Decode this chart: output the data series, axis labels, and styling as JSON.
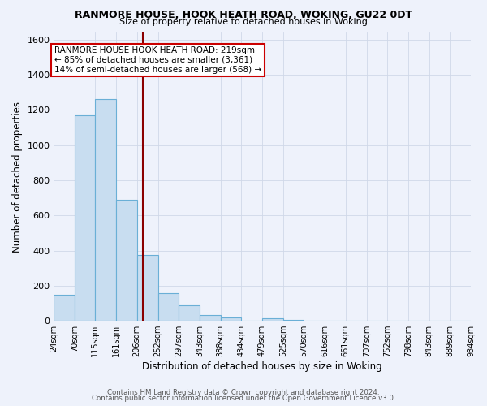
{
  "title1": "RANMORE HOUSE, HOOK HEATH ROAD, WOKING, GU22 0DT",
  "title2": "Size of property relative to detached houses in Woking",
  "xlabel": "Distribution of detached houses by size in Woking",
  "ylabel": "Number of detached properties",
  "bin_edges": [
    24,
    70,
    115,
    161,
    206,
    252,
    297,
    343,
    388,
    434,
    479,
    525,
    570,
    616,
    661,
    707,
    752,
    798,
    843,
    889,
    934
  ],
  "bar_heights": [
    150,
    1170,
    1260,
    690,
    375,
    160,
    90,
    35,
    20,
    0,
    15,
    5,
    0,
    0,
    0,
    0,
    0,
    0,
    0,
    0
  ],
  "bar_face_color": "#c8ddf0",
  "bar_edge_color": "#6aafd6",
  "vline_x": 219,
  "vline_color": "#8b0000",
  "ylim": [
    0,
    1640
  ],
  "ytick_positions": [
    0,
    200,
    400,
    600,
    800,
    1000,
    1200,
    1400,
    1600
  ],
  "grid_color": "#d0d8e8",
  "bg_color": "#eef2fb",
  "annotation_title": "RANMORE HOUSE HOOK HEATH ROAD: 219sqm",
  "annotation_line1": "← 85% of detached houses are smaller (3,361)",
  "annotation_line2": "14% of semi-detached houses are larger (568) →",
  "annotation_box_facecolor": "#ffffff",
  "annotation_box_edgecolor": "#cc0000",
  "footer1": "Contains HM Land Registry data © Crown copyright and database right 2024.",
  "footer2": "Contains public sector information licensed under the Open Government Licence v3.0.",
  "title1_fontsize": 9.0,
  "title2_fontsize": 8.0,
  "xlabel_fontsize": 8.5,
  "ylabel_fontsize": 8.5,
  "xtick_fontsize": 7.0,
  "ytick_fontsize": 8.0,
  "footer_fontsize": 6.2
}
